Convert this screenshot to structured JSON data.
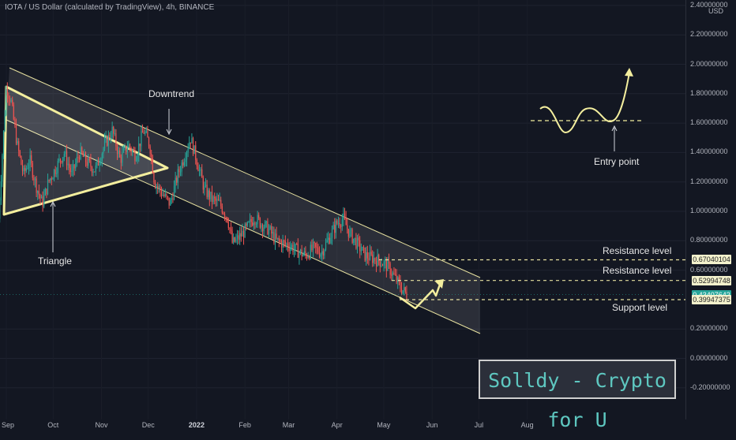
{
  "header": {
    "title": "IOTA / US Dollar (calculated by TradingView), 4h, BINANCE"
  },
  "currency": "USD",
  "price_axis": {
    "ticks": [
      "2.40000000",
      "2.20000000",
      "2.00000000",
      "1.80000000",
      "1.60000000",
      "1.40000000",
      "1.20000000",
      "1.00000000",
      "0.80000000",
      "0.60000000",
      "0.20000000",
      "0.00000000",
      "-0.20000000"
    ]
  },
  "price_tags": [
    {
      "text": "0.67040104",
      "kind": "res"
    },
    {
      "text": "0.52994748",
      "kind": "res"
    },
    {
      "text": "0.43407642",
      "kind": "cur"
    },
    {
      "text": "0.39947375",
      "kind": "res"
    }
  ],
  "time_axis": {
    "labels": [
      "Sep",
      "Oct",
      "Nov",
      "Dec",
      "2022",
      "Feb",
      "Mar",
      "Apr",
      "May",
      "Jun",
      "Jul",
      "Aug"
    ]
  },
  "annotations": {
    "downtrend": "Downtrend",
    "triangle": "Triangle",
    "entry_point": "Entry point",
    "resistance_1": "Resistance level",
    "resistance_2": "Resistance level",
    "support": "Support level"
  },
  "watermark": "Solldy - Crypto for U",
  "colors": {
    "background": "#131722",
    "up": "#26a69a",
    "down": "#ef5350",
    "drawing": "#f3ee9e"
  },
  "chart_data": {
    "type": "candlestick",
    "title": "IOTA / US Dollar (calculated by TradingView), 4h, BINANCE",
    "ylabel": "USD",
    "ylim": [
      -0.3,
      2.4
    ],
    "x_range": [
      "2021-08-27",
      "2022-08-31"
    ],
    "close_path": [
      [
        "2021-08-27",
        0.95
      ],
      [
        "2021-09-01",
        1.85
      ],
      [
        "2021-09-04",
        1.75
      ],
      [
        "2021-09-08",
        1.45
      ],
      [
        "2021-09-12",
        1.25
      ],
      [
        "2021-09-16",
        1.35
      ],
      [
        "2021-09-20",
        1.18
      ],
      [
        "2021-09-24",
        1.05
      ],
      [
        "2021-09-28",
        1.2
      ],
      [
        "2021-10-03",
        1.3
      ],
      [
        "2021-10-08",
        1.4
      ],
      [
        "2021-10-13",
        1.25
      ],
      [
        "2021-10-18",
        1.4
      ],
      [
        "2021-10-23",
        1.33
      ],
      [
        "2021-10-28",
        1.28
      ],
      [
        "2021-11-03",
        1.45
      ],
      [
        "2021-11-08",
        1.55
      ],
      [
        "2021-11-13",
        1.35
      ],
      [
        "2021-11-18",
        1.45
      ],
      [
        "2021-11-23",
        1.38
      ],
      [
        "2021-11-28",
        1.55
      ],
      [
        "2021-12-02",
        1.45
      ],
      [
        "2021-12-05",
        1.2
      ],
      [
        "2021-12-10",
        1.12
      ],
      [
        "2021-12-15",
        1.05
      ],
      [
        "2021-12-20",
        1.25
      ],
      [
        "2021-12-25",
        1.4
      ],
      [
        "2021-12-28",
        1.5
      ],
      [
        "2022-01-01",
        1.35
      ],
      [
        "2022-01-06",
        1.15
      ],
      [
        "2022-01-11",
        1.08
      ],
      [
        "2022-01-16",
        1.05
      ],
      [
        "2022-01-21",
        0.95
      ],
      [
        "2022-01-24",
        0.78
      ],
      [
        "2022-01-28",
        0.82
      ],
      [
        "2022-02-02",
        0.88
      ],
      [
        "2022-02-07",
        0.96
      ],
      [
        "2022-02-11",
        0.92
      ],
      [
        "2022-02-16",
        0.88
      ],
      [
        "2022-02-21",
        0.8
      ],
      [
        "2022-02-26",
        0.78
      ],
      [
        "2022-03-03",
        0.76
      ],
      [
        "2022-03-08",
        0.72
      ],
      [
        "2022-03-12",
        0.7
      ],
      [
        "2022-03-17",
        0.75
      ],
      [
        "2022-03-22",
        0.72
      ],
      [
        "2022-03-27",
        0.82
      ],
      [
        "2022-04-01",
        0.92
      ],
      [
        "2022-04-05",
        0.95
      ],
      [
        "2022-04-09",
        0.85
      ],
      [
        "2022-04-14",
        0.78
      ],
      [
        "2022-04-19",
        0.7
      ],
      [
        "2022-04-24",
        0.68
      ],
      [
        "2022-04-29",
        0.66
      ],
      [
        "2022-05-04",
        0.62
      ],
      [
        "2022-05-08",
        0.55
      ],
      [
        "2022-05-12",
        0.48
      ],
      [
        "2022-05-16",
        0.43
      ]
    ],
    "levels": [
      {
        "name": "Resistance level",
        "value": 0.67040104
      },
      {
        "name": "Resistance level",
        "value": 0.52994748
      },
      {
        "name": "Support level",
        "value": 0.39947375
      }
    ],
    "current_price": 0.43407642,
    "time_labels": [
      "Sep",
      "Oct",
      "Nov",
      "Dec",
      "2022",
      "Feb",
      "Mar",
      "Apr",
      "May",
      "Jun",
      "Jul",
      "Aug"
    ]
  }
}
